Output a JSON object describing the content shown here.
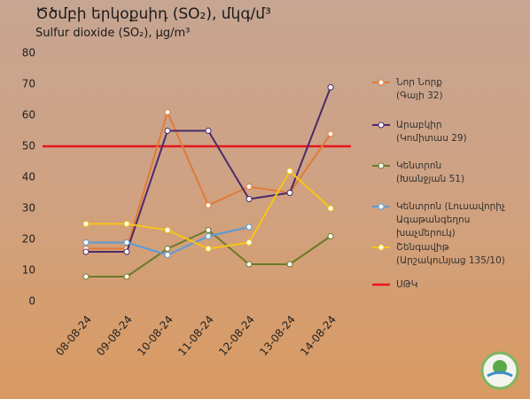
{
  "chart_data": {
    "type": "line",
    "title": "Ծծմբի երկօքսիդ (SO₂), մկգ/մ³",
    "subtitle": "Sulfur dioxide (SO₂), µg/m³",
    "categories": [
      "08-08-24",
      "09-08-24",
      "10-08-24",
      "11-08-24",
      "12-08-24",
      "13-08-24",
      "14-08-24"
    ],
    "series": [
      {
        "name": "Նոր Նորք\n(Գայի 32)",
        "color": "#e07b39",
        "values": [
          17,
          17,
          61,
          31,
          37,
          35,
          54
        ]
      },
      {
        "name": "Արաբկիր\n(Կոմիտաս 29)",
        "color": "#4b2a6b",
        "values": [
          16,
          16,
          55,
          55,
          33,
          35,
          69
        ]
      },
      {
        "name": "Կենտրոն\n(Խանջյան 51)",
        "color": "#6b7a2a",
        "values": [
          8,
          8,
          17,
          23,
          12,
          12,
          21
        ]
      },
      {
        "name": "Կենտրոն (Լուսավորիչ\nԱգաթանգեղոս խաչմերուկ)",
        "color": "#5b9bd5",
        "values": [
          19,
          19,
          15,
          21,
          24,
          null,
          null
        ]
      },
      {
        "name": "Շենգավիթ\n(Արշակունյաց 135/10)",
        "color": "#f5c518",
        "values": [
          25,
          25,
          23,
          17,
          19,
          42,
          30
        ]
      }
    ],
    "threshold": {
      "name": "ՍԹԿ",
      "value": 50,
      "color": "#e8141b"
    },
    "ylim": [
      0,
      80
    ],
    "yticks": [
      0,
      10,
      20,
      30,
      40,
      50,
      60,
      70,
      80
    ]
  }
}
